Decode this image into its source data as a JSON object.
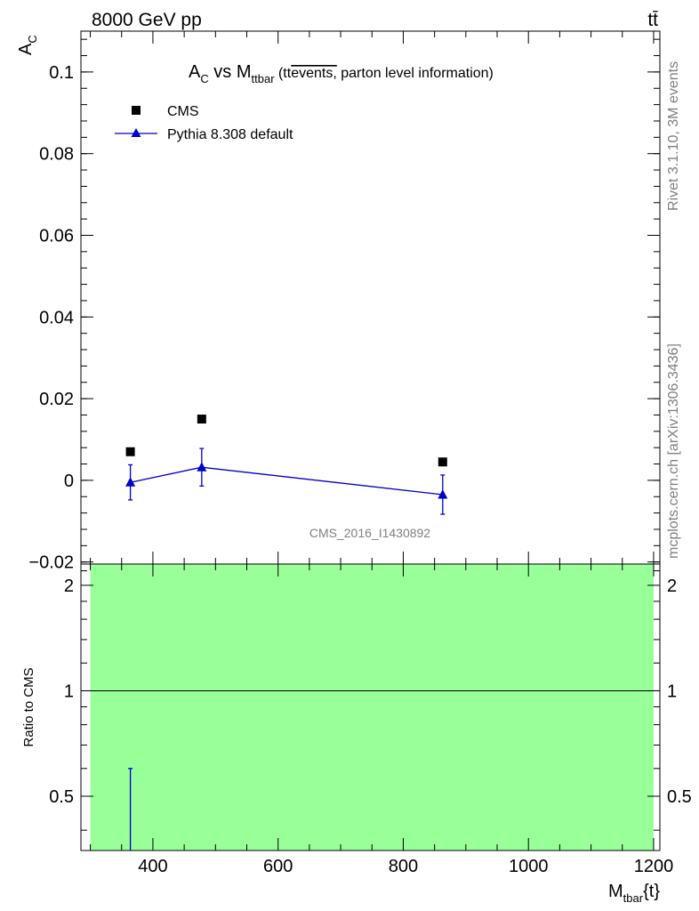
{
  "header": {
    "energy": "8000 GeV pp",
    "process": "tt̄"
  },
  "side_labels": {
    "rivet": "Rivet 3.1.10,  3M events",
    "mcplots": "mcplots.cern.ch [arXiv:1306.3436]"
  },
  "colors": {
    "ratio_band": "#99ff99",
    "pythia": "#0000cc",
    "cms": "#000000",
    "watermark": "#808080"
  },
  "chart_data": [
    {
      "type": "scatter",
      "title": "A_C vs M_ttbar (tt̄events, parton level information)",
      "title_parts": {
        "main": "A",
        "main_sub": "C",
        "vs": " vs M",
        "vs_sub": "ttbar",
        "paren_open": " (tt",
        "overline": "events,",
        "rest": " parton level information)"
      },
      "ylabel": "A_C",
      "ylabel_parts": {
        "main": "A",
        "sub": "C"
      },
      "xlim": [
        285,
        1210
      ],
      "ylim": [
        -0.0205,
        0.11
      ],
      "yticks": [
        -0.02,
        0,
        0.02,
        0.04,
        0.06,
        0.08,
        0.1
      ],
      "ytick_labels": [
        "−0.02",
        "0",
        "0.02",
        "0.04",
        "0.06",
        "0.08",
        "0.1"
      ],
      "legend_position": "top-left",
      "watermark": "CMS_2016_I1430892",
      "series": [
        {
          "name": "CMS",
          "marker": "square",
          "x": [
            364,
            478,
            863
          ],
          "y": [
            0.007,
            0.015,
            0.0045
          ]
        },
        {
          "name": "Pythia 8.308 default",
          "marker": "triangle",
          "line": true,
          "x": [
            364,
            478,
            863
          ],
          "y": [
            -0.0005,
            0.0032,
            -0.0035
          ],
          "err": [
            0.0043,
            0.0046,
            0.0048
          ]
        }
      ]
    },
    {
      "type": "scatter",
      "ylabel": "Ratio to CMS",
      "xlabel": "M_tbar{t}",
      "xlabel_parts": {
        "main": "M",
        "sub": "tbar",
        "rest": "{t}"
      },
      "xlim": [
        285,
        1210
      ],
      "xticks": [
        400,
        600,
        800,
        1000,
        1200
      ],
      "ylim": [
        0.35,
        2.3
      ],
      "yticks": [
        0.5,
        1,
        2
      ],
      "ytick_labels": [
        "0.5",
        "1",
        "2"
      ],
      "band": {
        "x": [
          300,
          1200
        ],
        "y": [
          0.35,
          2.3
        ]
      },
      "reference_line": 1,
      "series": [
        {
          "name": "Pythia 8.308 default",
          "x": [
            364
          ],
          "y_low": [
            0.35
          ],
          "y_high": [
            0.6
          ]
        }
      ]
    }
  ]
}
